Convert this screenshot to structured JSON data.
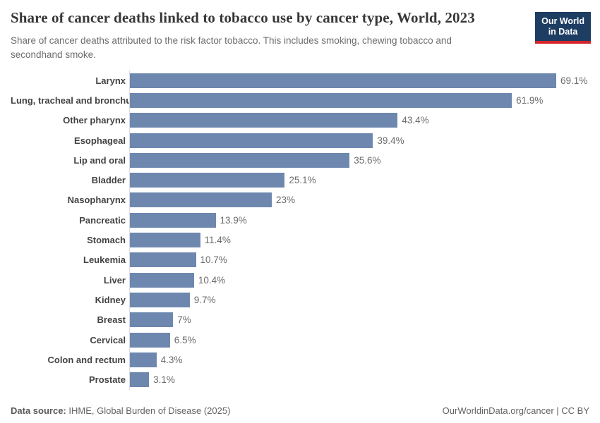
{
  "header": {
    "title": "Share of cancer deaths linked to tobacco use by cancer type, World, 2023",
    "subtitle": "Share of cancer deaths attributed to the risk factor tobacco. This includes smoking, chewing tobacco and secondhand smoke.",
    "logo": {
      "line1": "Our World",
      "line2": "in Data",
      "bg_color": "#1d3d63",
      "accent_color": "#d6242a"
    }
  },
  "chart_data": {
    "type": "bar",
    "orientation": "horizontal",
    "title": "Share of cancer deaths linked to tobacco use by cancer type, World, 2023",
    "xlabel": "",
    "ylabel": "",
    "xlim": [
      0,
      69.1
    ],
    "grid": false,
    "legend": false,
    "bar_color": "#6e87ae",
    "categories": [
      "Larynx",
      "Lung, tracheal and bronchus",
      "Other pharynx",
      "Esophageal",
      "Lip and oral",
      "Bladder",
      "Nasopharynx",
      "Pancreatic",
      "Stomach",
      "Leukemia",
      "Liver",
      "Kidney",
      "Breast",
      "Cervical",
      "Colon and rectum",
      "Prostate"
    ],
    "values": [
      69.1,
      61.9,
      43.4,
      39.4,
      35.6,
      25.1,
      23,
      13.9,
      11.4,
      10.7,
      10.4,
      9.7,
      7,
      6.5,
      4.3,
      3.1
    ],
    "value_labels": [
      "69.1%",
      "61.9%",
      "43.4%",
      "39.4%",
      "35.6%",
      "25.1%",
      "23%",
      "13.9%",
      "11.4%",
      "10.7%",
      "10.4%",
      "9.7%",
      "7%",
      "6.5%",
      "4.3%",
      "3.1%"
    ]
  },
  "footer": {
    "datasource_label": "Data source:",
    "datasource_value": "IHME, Global Burden of Disease (2025)",
    "rights": "OurWorldinData.org/cancer | CC BY"
  }
}
